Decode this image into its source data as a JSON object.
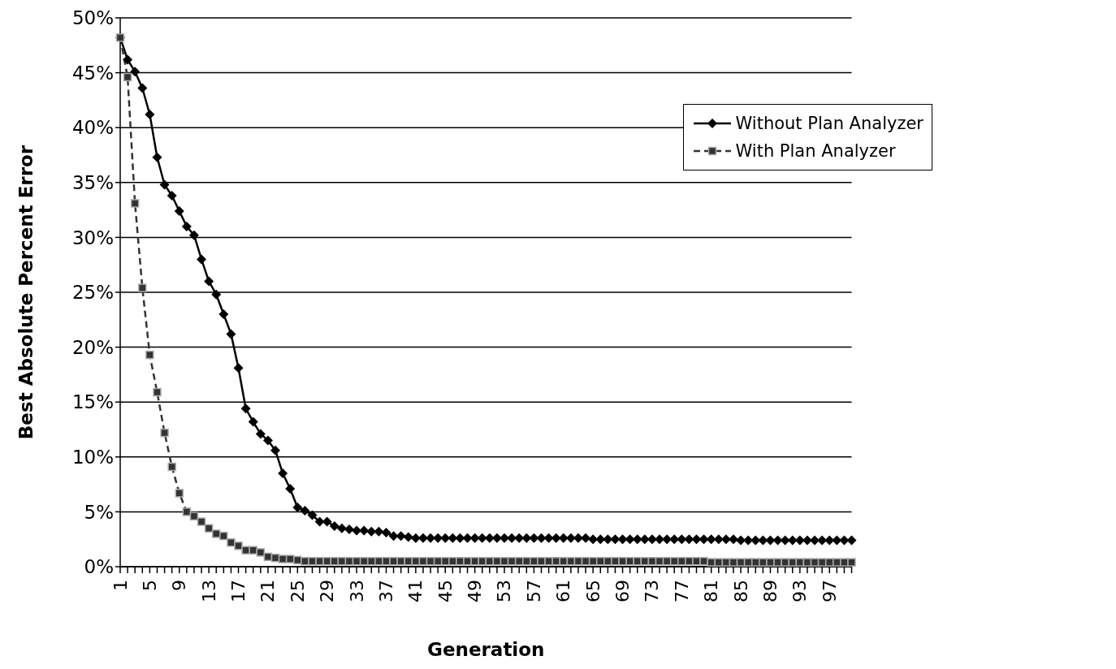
{
  "chart_data": {
    "type": "line",
    "xlabel": "Generation",
    "ylabel": "Best Absolute Percent Error",
    "categories": [
      "1",
      null,
      null,
      null,
      "5",
      null,
      null,
      null,
      "9",
      null,
      null,
      null,
      "13",
      null,
      null,
      null,
      "17",
      null,
      null,
      null,
      "21",
      null,
      null,
      null,
      "25",
      null,
      null,
      null,
      "29",
      null,
      null,
      null,
      "33",
      null,
      null,
      null,
      "37",
      null,
      null,
      null,
      "41",
      null,
      null,
      null,
      "45",
      null,
      null,
      null,
      "49",
      null,
      null,
      null,
      "53",
      null,
      null,
      null,
      "57",
      null,
      null,
      null,
      "61",
      null,
      null,
      null,
      "65",
      null,
      null,
      null,
      "69",
      null,
      null,
      null,
      "73",
      null,
      null,
      null,
      "77",
      null,
      null,
      null,
      "81",
      null,
      null,
      null,
      "85",
      null,
      null,
      null,
      "89",
      null,
      null,
      null,
      "93",
      null,
      null,
      null,
      "97",
      null,
      null,
      null
    ],
    "series": [
      {
        "name": "Without Plan Analyzer",
        "color": "#000000",
        "marker": "diamond",
        "line_style": "solid",
        "values": [
          48.2,
          46.2,
          45.1,
          43.6,
          41.2,
          37.3,
          34.8,
          33.8,
          32.4,
          31.0,
          30.2,
          28.0,
          26.0,
          24.8,
          23.0,
          21.2,
          18.1,
          14.4,
          13.2,
          12.1,
          11.5,
          10.6,
          8.5,
          7.1,
          5.4,
          5.1,
          4.7,
          4.1,
          4.1,
          3.7,
          3.5,
          3.4,
          3.3,
          3.3,
          3.2,
          3.2,
          3.1,
          2.8,
          2.8,
          2.7,
          2.6,
          2.6,
          2.6,
          2.6,
          2.6,
          2.6,
          2.6,
          2.6,
          2.6,
          2.6,
          2.6,
          2.6,
          2.6,
          2.6,
          2.6,
          2.6,
          2.6,
          2.6,
          2.6,
          2.6,
          2.6,
          2.6,
          2.6,
          2.6,
          2.5,
          2.5,
          2.5,
          2.5,
          2.5,
          2.5,
          2.5,
          2.5,
          2.5,
          2.5,
          2.5,
          2.5,
          2.5,
          2.5,
          2.5,
          2.5,
          2.5,
          2.5,
          2.5,
          2.5,
          2.4,
          2.4,
          2.4,
          2.4,
          2.4,
          2.4,
          2.4,
          2.4,
          2.4,
          2.4,
          2.4,
          2.4,
          2.4,
          2.4,
          2.4,
          2.4
        ]
      },
      {
        "name": "With Plan Analyzer",
        "color": "#333333",
        "marker": "square",
        "line_style": "dashed",
        "values": [
          48.2,
          44.6,
          33.1,
          25.4,
          19.3,
          15.9,
          12.2,
          9.1,
          6.7,
          5.0,
          4.6,
          4.1,
          3.5,
          3.0,
          2.8,
          2.2,
          1.9,
          1.5,
          1.5,
          1.3,
          0.9,
          0.8,
          0.7,
          0.7,
          0.6,
          0.5,
          0.5,
          0.5,
          0.5,
          0.5,
          0.5,
          0.5,
          0.5,
          0.5,
          0.5,
          0.5,
          0.5,
          0.5,
          0.5,
          0.5,
          0.5,
          0.5,
          0.5,
          0.5,
          0.5,
          0.5,
          0.5,
          0.5,
          0.5,
          0.5,
          0.5,
          0.5,
          0.5,
          0.5,
          0.5,
          0.5,
          0.5,
          0.5,
          0.5,
          0.5,
          0.5,
          0.5,
          0.5,
          0.5,
          0.5,
          0.5,
          0.5,
          0.5,
          0.5,
          0.5,
          0.5,
          0.5,
          0.5,
          0.5,
          0.5,
          0.5,
          0.5,
          0.5,
          0.5,
          0.5,
          0.4,
          0.4,
          0.4,
          0.4,
          0.4,
          0.4,
          0.4,
          0.4,
          0.4,
          0.4,
          0.4,
          0.4,
          0.4,
          0.4,
          0.4,
          0.4,
          0.4,
          0.4,
          0.4,
          0.4
        ]
      }
    ],
    "ylim": [
      0,
      50
    ],
    "yticks": [
      {
        "value": 0,
        "label": "0%"
      },
      {
        "value": 5,
        "label": "5%"
      },
      {
        "value": 10,
        "label": "10%"
      },
      {
        "value": 15,
        "label": "15%"
      },
      {
        "value": 20,
        "label": "20%"
      },
      {
        "value": 25,
        "label": "25%"
      },
      {
        "value": 30,
        "label": "30%"
      },
      {
        "value": 35,
        "label": "35%"
      },
      {
        "value": 40,
        "label": "40%"
      },
      {
        "value": 45,
        "label": "45%"
      },
      {
        "value": 50,
        "label": "50%"
      }
    ],
    "grid": "y",
    "legend": "top right"
  }
}
